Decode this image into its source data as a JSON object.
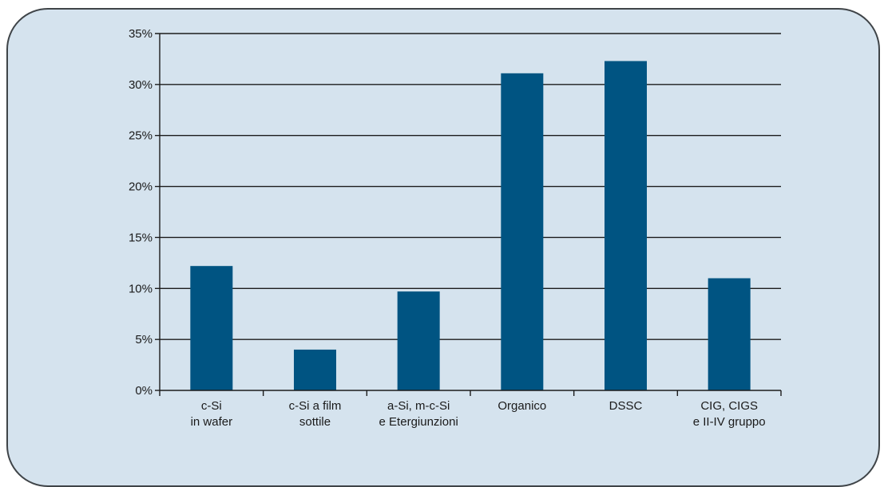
{
  "chart_data": {
    "type": "bar",
    "title": "",
    "xlabel": "",
    "ylabel": "",
    "categories": [
      [
        "c-Si",
        "in wafer"
      ],
      [
        "c-Si a film",
        "sottile"
      ],
      [
        "a-Si, m-c-Si",
        "e Etergiunzioni"
      ],
      [
        "Organico"
      ],
      [
        "DSSC"
      ],
      [
        "CIG, CIGS",
        "e II-IV gruppo"
      ]
    ],
    "values": [
      12.2,
      4.0,
      9.7,
      31.1,
      32.3,
      11.0
    ],
    "ylim": [
      0,
      35
    ],
    "yticks": [
      0,
      5,
      10,
      15,
      20,
      25,
      30,
      35
    ],
    "ytick_labels": [
      "0%",
      "5%",
      "10%",
      "15%",
      "20%",
      "25%",
      "30%",
      "35%"
    ],
    "grid": true,
    "bar_color": "#005482"
  }
}
